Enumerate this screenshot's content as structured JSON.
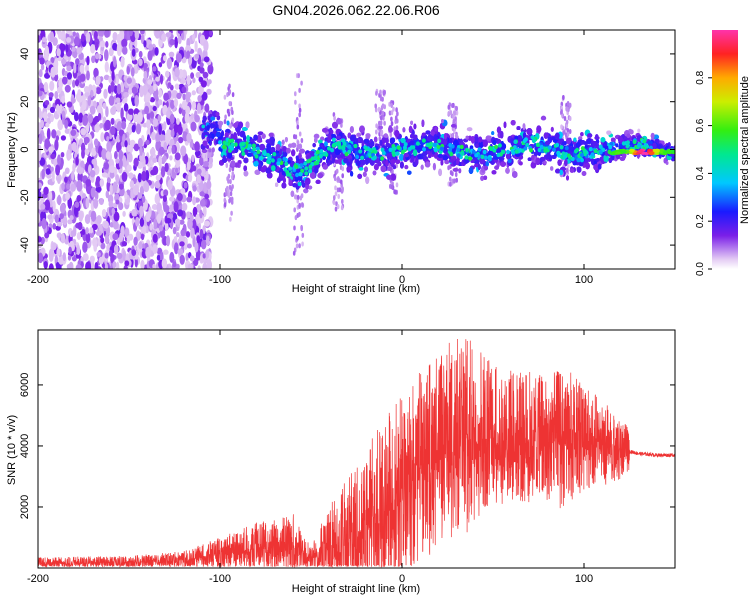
{
  "figure_title": "GN04.2026.062.22.06.R06",
  "chart_data": [
    {
      "type": "heatmap",
      "xlabel": "Height of straight line (km)",
      "ylabel": "Frequency (Hz)",
      "xlim": [
        -200,
        150
      ],
      "ylim": [
        -50,
        50
      ],
      "xticks": [
        -200,
        -100,
        0,
        100
      ],
      "yticks": [
        -40,
        -20,
        0,
        20,
        40
      ],
      "grid": false,
      "colorbar": {
        "label": "Normalized spectral amplitude",
        "range": [
          0,
          1
        ],
        "ticks": [
          "0.0",
          "0.2",
          "0.4",
          "0.6",
          "0.8"
        ],
        "tick_values": [
          0.0,
          0.2,
          0.4,
          0.6,
          0.8
        ],
        "colormap": "rainbow"
      },
      "features": {
        "main_band_center_hz": 0,
        "main_band_span_km": [
          -110,
          150
        ],
        "max_amplitude_location": {
          "x": 133,
          "y": -1,
          "value": 1.0
        },
        "dip_location": {
          "x": -55,
          "y": -15
        }
      }
    },
    {
      "type": "line",
      "xlabel": "Height of straight line (km)",
      "ylabel": "SNR (10 * v/v)",
      "xlim": [
        -200,
        150
      ],
      "ylim": [
        0,
        7800
      ],
      "xticks": [
        -200,
        -100,
        0,
        100
      ],
      "yticks": [
        2000,
        4000,
        6000
      ],
      "grid": false,
      "series": [
        {
          "color": "#ee3333",
          "envelope_x": [
            -200,
            -150,
            -120,
            -100,
            -80,
            -60,
            -50,
            -40,
            -25,
            -10,
            0,
            10,
            20,
            30,
            40,
            50,
            60,
            70,
            80,
            90,
            100,
            110,
            120,
            130,
            140,
            150
          ],
          "envelope_mean": [
            150,
            180,
            250,
            450,
            650,
            700,
            300,
            600,
            1100,
            1800,
            2500,
            3200,
            3700,
            4100,
            4200,
            4300,
            4200,
            4200,
            4100,
            4100,
            4200,
            4000,
            3900,
            3750,
            3700,
            3700
          ],
          "envelope_max": [
            350,
            400,
            550,
            1000,
            1500,
            1800,
            700,
            2000,
            3500,
            5000,
            6000,
            6500,
            7200,
            7600,
            7500,
            6800,
            6500,
            6500,
            6300,
            6600,
            6000,
            5500,
            5000,
            4000,
            3850,
            3800
          ]
        }
      ]
    }
  ]
}
